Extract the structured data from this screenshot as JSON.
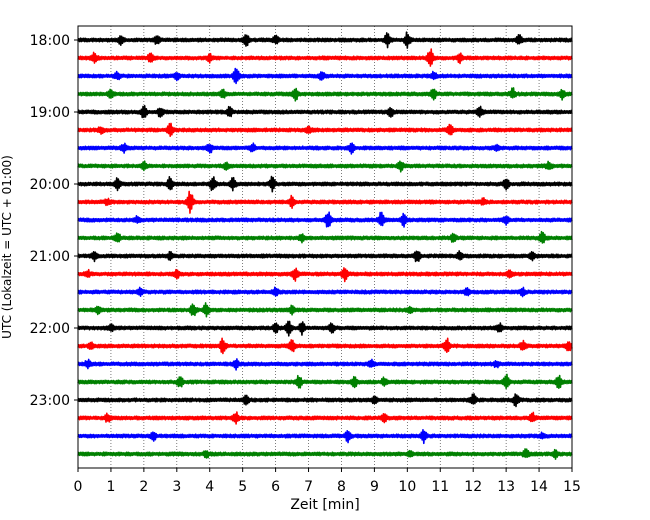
{
  "chart_data": {
    "type": "line",
    "title": "",
    "xlabel": "Zeit  [min]",
    "ylabel": "UTC (Lokalzeit = UTC + 01:00)",
    "xlim": [
      0,
      15
    ],
    "x_ticks": [
      0,
      1,
      2,
      3,
      4,
      5,
      6,
      7,
      8,
      9,
      10,
      11,
      12,
      13,
      14,
      15
    ],
    "y_tick_labels": [
      "18:00",
      "19:00",
      "20:00",
      "21:00",
      "22:00",
      "23:00"
    ],
    "grid": "vertical dotted",
    "line_colors": [
      "#000000",
      "#ff0000",
      "#0000ff",
      "#008000"
    ],
    "start_time": "18:00",
    "minutes_per_trace": 15,
    "traces": [
      {
        "start": "18:00",
        "color": "#000000",
        "events": [
          [
            1.3,
            0.6
          ],
          [
            2.4,
            0.5
          ],
          [
            5.1,
            0.8
          ],
          [
            6.0,
            0.5
          ],
          [
            9.4,
            1.0
          ],
          [
            10.0,
            1.0
          ],
          [
            13.4,
            0.6
          ]
        ]
      },
      {
        "start": "18:15",
        "color": "#ff0000",
        "events": [
          [
            0.5,
            0.6
          ],
          [
            2.2,
            0.5
          ],
          [
            4.0,
            0.5
          ],
          [
            10.7,
            1.2
          ],
          [
            11.6,
            0.6
          ]
        ]
      },
      {
        "start": "18:30",
        "color": "#0000ff",
        "events": [
          [
            1.2,
            0.5
          ],
          [
            3.0,
            0.5
          ],
          [
            4.8,
            1.1
          ],
          [
            7.4,
            0.6
          ],
          [
            10.8,
            0.5
          ]
        ]
      },
      {
        "start": "18:45",
        "color": "#008000",
        "events": [
          [
            1.0,
            0.5
          ],
          [
            4.4,
            0.5
          ],
          [
            6.6,
            0.9
          ],
          [
            10.8,
            0.8
          ],
          [
            13.2,
            0.7
          ],
          [
            14.7,
            0.6
          ]
        ]
      },
      {
        "start": "19:00",
        "color": "#000000",
        "events": [
          [
            2.0,
            0.8
          ],
          [
            2.5,
            0.6
          ],
          [
            4.6,
            0.6
          ],
          [
            9.5,
            0.6
          ],
          [
            12.2,
            0.6
          ]
        ]
      },
      {
        "start": "19:15",
        "color": "#ff0000",
        "events": [
          [
            0.7,
            0.4
          ],
          [
            2.8,
            0.8
          ],
          [
            7.0,
            0.5
          ],
          [
            11.3,
            0.6
          ]
        ]
      },
      {
        "start": "19:30",
        "color": "#0000ff",
        "events": [
          [
            1.4,
            0.5
          ],
          [
            4.0,
            0.6
          ],
          [
            5.3,
            0.5
          ],
          [
            8.3,
            0.6
          ],
          [
            12.7,
            0.4
          ]
        ]
      },
      {
        "start": "19:45",
        "color": "#008000",
        "events": [
          [
            2.0,
            0.5
          ],
          [
            4.5,
            0.5
          ],
          [
            9.8,
            0.6
          ],
          [
            14.3,
            0.5
          ]
        ]
      },
      {
        "start": "20:00",
        "color": "#000000",
        "events": [
          [
            1.2,
            0.7
          ],
          [
            2.8,
            1.0
          ],
          [
            4.1,
            1.0
          ],
          [
            4.7,
            0.8
          ],
          [
            5.9,
            0.9
          ],
          [
            13.0,
            0.7
          ]
        ]
      },
      {
        "start": "20:15",
        "color": "#ff0000",
        "events": [
          [
            0.9,
            0.4
          ],
          [
            3.4,
            1.8
          ],
          [
            6.5,
            0.8
          ],
          [
            12.3,
            0.4
          ]
        ]
      },
      {
        "start": "20:30",
        "color": "#0000ff",
        "events": [
          [
            1.8,
            0.4
          ],
          [
            7.6,
            1.2
          ],
          [
            9.2,
            1.0
          ],
          [
            9.9,
            0.8
          ],
          [
            13.0,
            0.5
          ]
        ]
      },
      {
        "start": "20:45",
        "color": "#008000",
        "events": [
          [
            1.2,
            0.7
          ],
          [
            6.8,
            0.5
          ],
          [
            11.4,
            0.5
          ],
          [
            14.1,
            0.9
          ]
        ]
      },
      {
        "start": "21:00",
        "color": "#000000",
        "events": [
          [
            0.5,
            0.6
          ],
          [
            2.8,
            0.5
          ],
          [
            10.3,
            0.8
          ],
          [
            11.6,
            0.6
          ],
          [
            13.8,
            0.6
          ]
        ]
      },
      {
        "start": "21:15",
        "color": "#ff0000",
        "events": [
          [
            0.3,
            0.4
          ],
          [
            3.0,
            0.5
          ],
          [
            6.6,
            0.9
          ],
          [
            8.1,
            0.9
          ],
          [
            13.1,
            0.5
          ]
        ]
      },
      {
        "start": "21:30",
        "color": "#0000ff",
        "events": [
          [
            1.9,
            0.5
          ],
          [
            6.0,
            0.5
          ],
          [
            11.8,
            0.4
          ],
          [
            13.5,
            0.5
          ]
        ]
      },
      {
        "start": "21:45",
        "color": "#008000",
        "events": [
          [
            0.6,
            0.4
          ],
          [
            3.5,
            0.8
          ],
          [
            3.9,
            1.0
          ],
          [
            6.5,
            0.5
          ],
          [
            10.1,
            0.4
          ]
        ]
      },
      {
        "start": "22:00",
        "color": "#000000",
        "events": [
          [
            1.0,
            0.4
          ],
          [
            6.0,
            0.6
          ],
          [
            6.4,
            1.0
          ],
          [
            6.8,
            0.8
          ],
          [
            7.7,
            0.6
          ],
          [
            12.8,
            0.5
          ]
        ]
      },
      {
        "start": "22:15",
        "color": "#ff0000",
        "events": [
          [
            0.4,
            0.5
          ],
          [
            4.4,
            1.0
          ],
          [
            6.5,
            0.8
          ],
          [
            11.2,
            1.2
          ],
          [
            13.5,
            0.6
          ],
          [
            14.9,
            0.6
          ]
        ]
      },
      {
        "start": "22:30",
        "color": "#0000ff",
        "events": [
          [
            0.3,
            0.5
          ],
          [
            4.8,
            0.6
          ],
          [
            8.9,
            0.5
          ],
          [
            12.7,
            0.4
          ]
        ]
      },
      {
        "start": "22:45",
        "color": "#008000",
        "events": [
          [
            3.1,
            0.7
          ],
          [
            6.7,
            0.9
          ],
          [
            8.4,
            0.6
          ],
          [
            9.3,
            0.5
          ],
          [
            13.0,
            1.0
          ],
          [
            14.6,
            0.8
          ]
        ]
      },
      {
        "start": "23:00",
        "color": "#000000",
        "events": [
          [
            5.1,
            0.5
          ],
          [
            9.0,
            0.4
          ],
          [
            12.0,
            0.7
          ],
          [
            13.3,
            0.8
          ]
        ]
      },
      {
        "start": "23:15",
        "color": "#ff0000",
        "events": [
          [
            0.9,
            0.5
          ],
          [
            4.8,
            0.8
          ],
          [
            9.3,
            0.4
          ],
          [
            13.8,
            0.6
          ]
        ]
      },
      {
        "start": "23:30",
        "color": "#0000ff",
        "events": [
          [
            2.3,
            0.5
          ],
          [
            8.2,
            0.7
          ],
          [
            10.5,
            0.9
          ],
          [
            14.1,
            0.4
          ]
        ]
      },
      {
        "start": "23:45",
        "color": "#008000",
        "events": [
          [
            3.9,
            0.4
          ],
          [
            10.1,
            0.4
          ],
          [
            13.6,
            0.6
          ],
          [
            14.5,
            0.5
          ]
        ]
      }
    ]
  }
}
